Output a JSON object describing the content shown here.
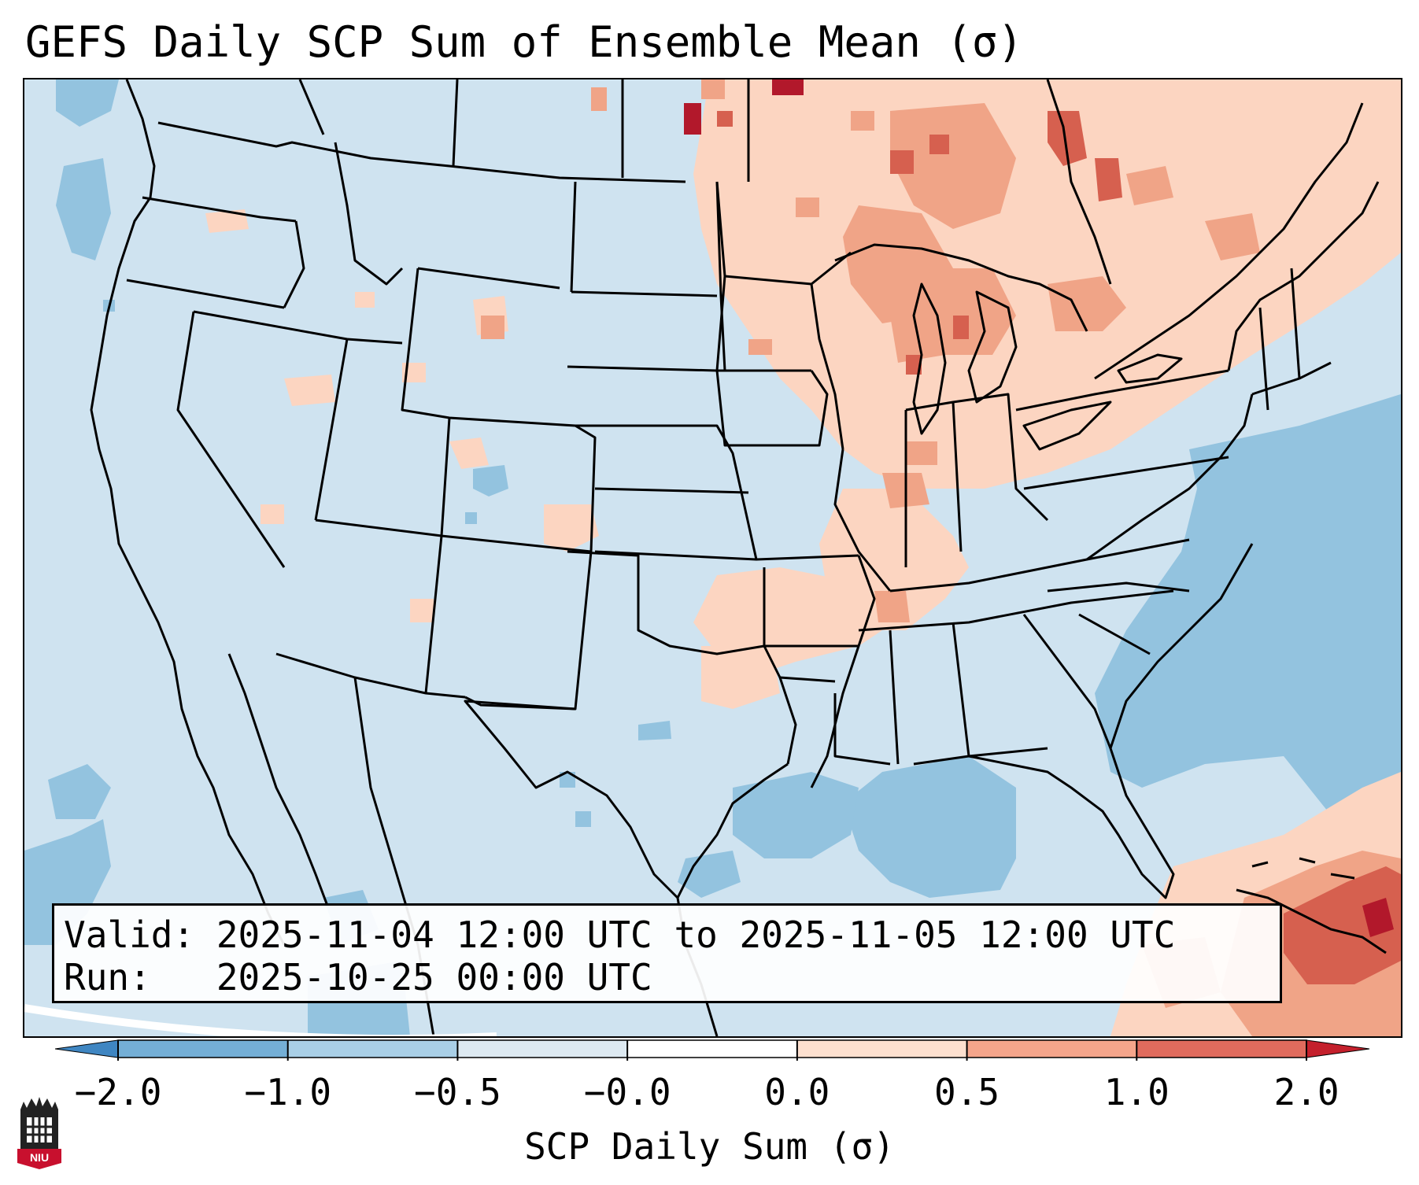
{
  "title": "GEFS Daily SCP Sum of Ensemble Mean (σ)",
  "info": {
    "valid": "Valid: 2025-11-04 12:00 UTC to 2025-11-05 12:00 UTC",
    "run": "Run:   2025-10-25 00:00 UTC"
  },
  "colorbar": {
    "label": "SCP Daily Sum (σ)",
    "ticks": [
      "−2.0",
      "−1.0",
      "−0.5",
      "−0.0",
      "0.0",
      "0.5",
      "1.0",
      "2.0"
    ],
    "colors": [
      "#3f86c2",
      "#74afd6",
      "#a9cfe6",
      "#dde9f1",
      "#fde0cf",
      "#f5a58b",
      "#e06b5d",
      "#c4202c"
    ]
  },
  "map_colors": {
    "background": "#cfe3f0",
    "negative": "#93c3df",
    "light_positive": "#fcd5c1",
    "medium_positive": "#f0a487",
    "strong_positive": "#d6604f",
    "extreme_positive": "#b2182b"
  },
  "logo_text": "NIU"
}
